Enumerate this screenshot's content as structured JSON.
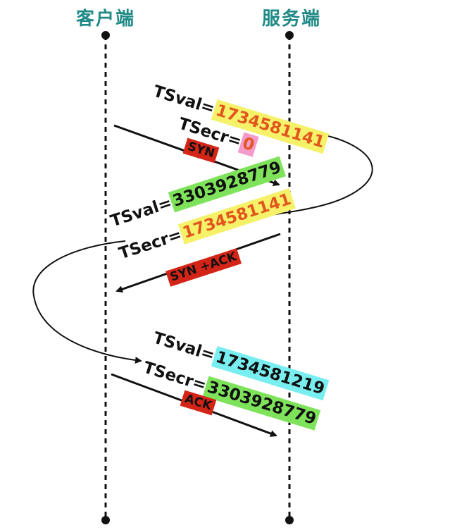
{
  "roles": {
    "client": "客户端",
    "server": "服务端"
  },
  "colors": {
    "title": "#1f8a86",
    "yellow": "#f5f26a",
    "green": "#7ee35a",
    "cyan": "#78eef0",
    "pink": "#f49bcc",
    "red": "#d42418",
    "orange_text": "#e2561e"
  },
  "messages": [
    {
      "flag": "SYN",
      "direction": "client-to-server",
      "tsval_label": "TSval=",
      "tsval": "1734581141",
      "tsecr_label": "TSecr=",
      "tsecr": "0"
    },
    {
      "flag": "SYN +ACK",
      "direction": "server-to-client",
      "tsval_label": "TSval=",
      "tsval": "3303928779",
      "tsecr_label": "TSecr=",
      "tsecr": "1734581141"
    },
    {
      "flag": "ACK",
      "direction": "client-to-server",
      "tsval_label": "TSval=",
      "tsval": "1734581219",
      "tsecr_label": "TSecr=",
      "tsecr": "3303928779"
    }
  ]
}
